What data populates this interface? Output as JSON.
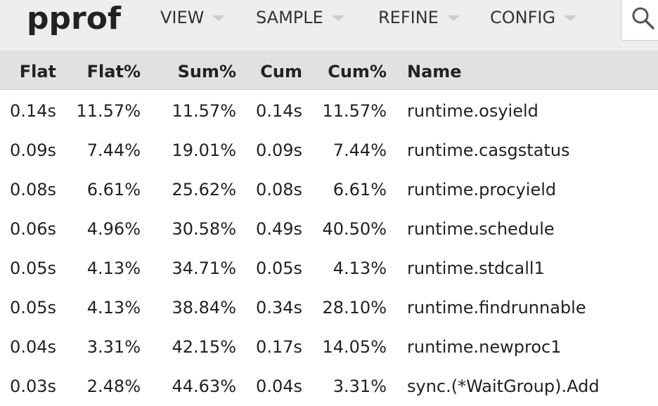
{
  "app": {
    "logo": "pprof"
  },
  "menu": [
    {
      "label": "VIEW"
    },
    {
      "label": "SAMPLE"
    },
    {
      "label": "REFINE"
    },
    {
      "label": "CONFIG"
    }
  ],
  "search": {
    "icon": "search-icon"
  },
  "table": {
    "headers": {
      "flat": "Flat",
      "flat_pct": "Flat%",
      "sum_pct": "Sum%",
      "cum": "Cum",
      "cum_pct": "Cum%",
      "name": "Name"
    },
    "rows": [
      {
        "flat": "0.14s",
        "flat_pct": "11.57%",
        "sum_pct": "11.57%",
        "cum": "0.14s",
        "cum_pct": "11.57%",
        "name": "runtime.osyield"
      },
      {
        "flat": "0.09s",
        "flat_pct": "7.44%",
        "sum_pct": "19.01%",
        "cum": "0.09s",
        "cum_pct": "7.44%",
        "name": "runtime.casgstatus"
      },
      {
        "flat": "0.08s",
        "flat_pct": "6.61%",
        "sum_pct": "25.62%",
        "cum": "0.08s",
        "cum_pct": "6.61%",
        "name": "runtime.procyield"
      },
      {
        "flat": "0.06s",
        "flat_pct": "4.96%",
        "sum_pct": "30.58%",
        "cum": "0.49s",
        "cum_pct": "40.50%",
        "name": "runtime.schedule"
      },
      {
        "flat": "0.05s",
        "flat_pct": "4.13%",
        "sum_pct": "34.71%",
        "cum": "0.05s",
        "cum_pct": "4.13%",
        "name": "runtime.stdcall1"
      },
      {
        "flat": "0.05s",
        "flat_pct": "4.13%",
        "sum_pct": "38.84%",
        "cum": "0.34s",
        "cum_pct": "28.10%",
        "name": "runtime.findrunnable"
      },
      {
        "flat": "0.04s",
        "flat_pct": "3.31%",
        "sum_pct": "42.15%",
        "cum": "0.17s",
        "cum_pct": "14.05%",
        "name": "runtime.newproc1"
      },
      {
        "flat": "0.03s",
        "flat_pct": "2.48%",
        "sum_pct": "44.63%",
        "cum": "0.04s",
        "cum_pct": "3.31%",
        "name": "sync.(*WaitGroup).Add"
      }
    ]
  }
}
